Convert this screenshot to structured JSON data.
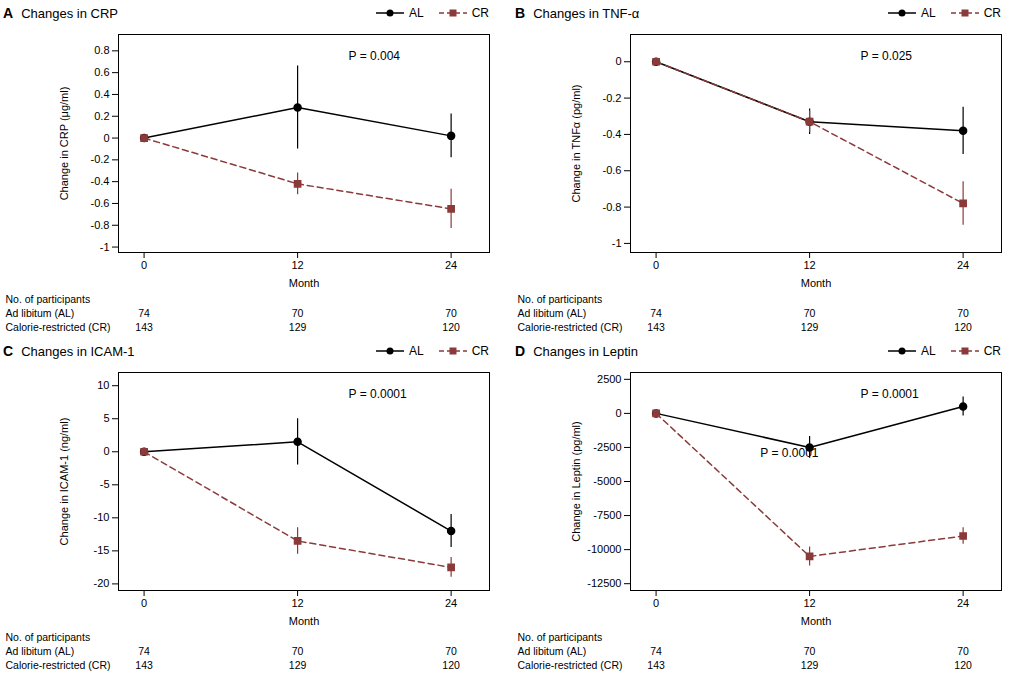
{
  "chart_data": [
    {
      "type": "line",
      "panel_label": "A",
      "title": "Changes in CRP",
      "x_label": "Month",
      "y_label": "Change in CRP (μg/ml)",
      "x": [
        0,
        12,
        24
      ],
      "xlim": [
        -2,
        27
      ],
      "xticks": [
        0,
        12,
        24
      ],
      "ylim": [
        -1.05,
        0.95
      ],
      "yticks": [
        -1.0,
        -0.8,
        -0.6,
        -0.4,
        -0.2,
        0.0,
        0.2,
        0.4,
        0.6,
        0.8
      ],
      "grid": false,
      "series": [
        {
          "name": "AL",
          "color": "#000000",
          "marker": "circle",
          "line_style": "solid",
          "values": [
            0,
            0.28,
            0.02
          ],
          "errors": [
            0,
            0.38,
            0.2
          ]
        },
        {
          "name": "CR",
          "color": "#8B3A3A",
          "marker": "square",
          "line_style": "dashed",
          "values": [
            0,
            -0.42,
            -0.65
          ],
          "errors": [
            0,
            0.1,
            0.18
          ]
        }
      ],
      "annotations": [
        "P = 0.004"
      ],
      "table": {
        "title": "No. of participants",
        "rows": [
          {
            "name": "Ad libitum (AL)",
            "values": [
              74,
              70,
              70
            ]
          },
          {
            "name": "Calorie-restricted (CR)",
            "values": [
              143,
              129,
              120
            ]
          }
        ]
      }
    },
    {
      "type": "line",
      "panel_label": "B",
      "title": "Changes in TNF-α",
      "x_label": "Month",
      "y_label": "Change in TNFα (pg/ml)",
      "x": [
        0,
        12,
        24
      ],
      "xlim": [
        -2,
        27
      ],
      "xticks": [
        0,
        12,
        24
      ],
      "ylim": [
        -1.05,
        0.15
      ],
      "yticks": [
        -1.0,
        -0.8,
        -0.6,
        -0.4,
        -0.2,
        0.0
      ],
      "grid": false,
      "series": [
        {
          "name": "AL",
          "color": "#000000",
          "marker": "circle",
          "line_style": "solid",
          "values": [
            0,
            -0.33,
            -0.38
          ],
          "errors": [
            0,
            0.07,
            0.13
          ]
        },
        {
          "name": "CR",
          "color": "#8B3A3A",
          "marker": "square",
          "line_style": "dashed",
          "values": [
            0,
            -0.33,
            -0.78
          ],
          "errors": [
            0,
            0.06,
            0.12
          ]
        }
      ],
      "annotations": [
        "P = 0.025"
      ],
      "table": {
        "title": "No. of participants",
        "rows": [
          {
            "name": "Ad libitum (AL)",
            "values": [
              74,
              70,
              70
            ]
          },
          {
            "name": "Calorie-restricted (CR)",
            "values": [
              143,
              129,
              120
            ]
          }
        ]
      }
    },
    {
      "type": "line",
      "panel_label": "C",
      "title": "Changes in ICAM-1",
      "x_label": "Month",
      "y_label": "Change in ICAM-1 (ng/ml)",
      "x": [
        0,
        12,
        24
      ],
      "xlim": [
        -2,
        27
      ],
      "xticks": [
        0,
        12,
        24
      ],
      "ylim": [
        -21,
        12
      ],
      "yticks": [
        -20,
        -15,
        -10,
        -5,
        0,
        5,
        10
      ],
      "grid": false,
      "series": [
        {
          "name": "AL",
          "color": "#000000",
          "marker": "circle",
          "line_style": "solid",
          "values": [
            0,
            1.5,
            -12.0
          ],
          "errors": [
            0,
            3.5,
            2.5
          ]
        },
        {
          "name": "CR",
          "color": "#8B3A3A",
          "marker": "square",
          "line_style": "dashed",
          "values": [
            0,
            -13.5,
            -17.5
          ],
          "errors": [
            0,
            2.0,
            1.5
          ]
        }
      ],
      "annotations": [
        "P = 0.0001"
      ],
      "table": {
        "title": "No. of participants",
        "rows": [
          {
            "name": "Ad libitum (AL)",
            "values": [
              74,
              70,
              70
            ]
          },
          {
            "name": "Calorie-restricted (CR)",
            "values": [
              143,
              129,
              120
            ]
          }
        ]
      }
    },
    {
      "type": "line",
      "panel_label": "D",
      "title": "Changes in Leptin",
      "x_label": "Month",
      "y_label": "Change in Leptin (pg/ml)",
      "x": [
        0,
        12,
        24
      ],
      "xlim": [
        -2,
        27
      ],
      "xticks": [
        0,
        12,
        24
      ],
      "ylim": [
        -13000,
        3000
      ],
      "yticks": [
        -12500,
        -10000,
        -7500,
        -5000,
        -2500,
        0,
        2500
      ],
      "grid": false,
      "series": [
        {
          "name": "AL",
          "color": "#000000",
          "marker": "circle",
          "line_style": "solid",
          "values": [
            0,
            -2500,
            500
          ],
          "errors": [
            0,
            800,
            700
          ]
        },
        {
          "name": "CR",
          "color": "#8B3A3A",
          "marker": "square",
          "line_style": "dashed",
          "values": [
            0,
            -10500,
            -9000
          ],
          "errors": [
            0,
            700,
            600
          ]
        }
      ],
      "annotations": [
        "P = 0.0001",
        "P = 0.0001"
      ],
      "table": {
        "title": "No. of participants",
        "rows": [
          {
            "name": "Ad libitum (AL)",
            "values": [
              74,
              70,
              70
            ]
          },
          {
            "name": "Calorie-restricted (CR)",
            "values": [
              143,
              129,
              120
            ]
          }
        ]
      }
    }
  ]
}
